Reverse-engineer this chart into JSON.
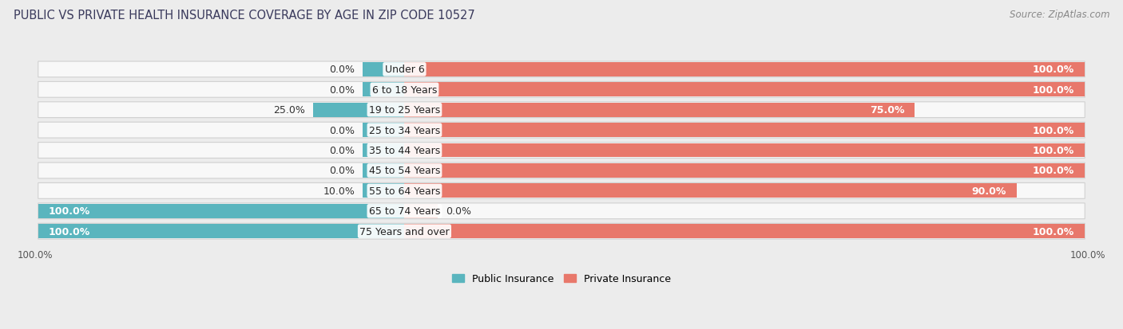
{
  "title": "PUBLIC VS PRIVATE HEALTH INSURANCE COVERAGE BY AGE IN ZIP CODE 10527",
  "source": "Source: ZipAtlas.com",
  "categories": [
    "Under 6",
    "6 to 18 Years",
    "19 to 25 Years",
    "25 to 34 Years",
    "35 to 44 Years",
    "45 to 54 Years",
    "55 to 64 Years",
    "65 to 74 Years",
    "75 Years and over"
  ],
  "public_values": [
    0.0,
    0.0,
    25.0,
    0.0,
    0.0,
    0.0,
    10.0,
    100.0,
    100.0
  ],
  "private_values": [
    100.0,
    100.0,
    75.0,
    100.0,
    100.0,
    100.0,
    90.0,
    0.0,
    100.0
  ],
  "public_color": "#5ab5be",
  "private_color": "#e8786b",
  "private_light_color": "#f0b0a8",
  "public_label": "Public Insurance",
  "private_label": "Private Insurance",
  "bg_color": "#ececec",
  "bar_bg_color": "#f8f8f8",
  "title_color": "#3a3a5c",
  "source_color": "#888888",
  "value_fontsize": 9.0,
  "cat_fontsize": 9.0,
  "title_fontsize": 10.5,
  "source_fontsize": 8.5
}
